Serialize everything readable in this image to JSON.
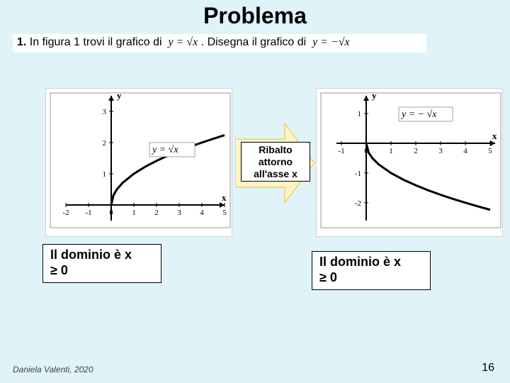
{
  "title": "Problema",
  "problem": {
    "prefix": "1.",
    "text_a": "In figura 1 trovi il grafico di",
    "eq_a": "y = √x",
    "text_b": ".  Disegna il grafico di",
    "eq_b": "y = −√x"
  },
  "arrow": {
    "label": "Ribalto\nattorno\nall'asse x",
    "fill": "#fff3c4",
    "stroke": "#e7c23c"
  },
  "chart_left": {
    "type": "line",
    "title": null,
    "equation_label": "y = √x",
    "x": {
      "min": -2,
      "max": 5,
      "ticks": [
        -2,
        -1,
        0,
        1,
        2,
        3,
        4,
        5
      ],
      "label": "x"
    },
    "y": {
      "min": -0.5,
      "max": 3.5,
      "ticks": [
        1,
        2,
        3
      ],
      "label": "y"
    },
    "curve": {
      "fn": "sqrt",
      "xmin": 0,
      "xmax": 5,
      "points": [
        {
          "x": 0,
          "y": 0
        },
        {
          "x": 0.1,
          "y": 0.316
        },
        {
          "x": 0.25,
          "y": 0.5
        },
        {
          "x": 0.5,
          "y": 0.707
        },
        {
          "x": 1,
          "y": 1
        },
        {
          "x": 1.5,
          "y": 1.225
        },
        {
          "x": 2,
          "y": 1.414
        },
        {
          "x": 2.5,
          "y": 1.581
        },
        {
          "x": 3,
          "y": 1.732
        },
        {
          "x": 3.5,
          "y": 1.871
        },
        {
          "x": 4,
          "y": 2
        },
        {
          "x": 4.5,
          "y": 2.121
        },
        {
          "x": 5,
          "y": 2.236
        }
      ],
      "color": "#000000",
      "width": 3
    },
    "axis_color": "#000000",
    "background": "#ffffff",
    "tick_font_size": 11
  },
  "chart_right": {
    "type": "line",
    "title": null,
    "equation_label": "y = − √x",
    "x": {
      "min": -1.2,
      "max": 5.2,
      "ticks": [
        -1,
        0,
        1,
        2,
        3,
        4,
        5
      ],
      "label": "x"
    },
    "y": {
      "min": -2.6,
      "max": 1.6,
      "ticks": [
        1,
        -1,
        -2
      ],
      "label": "y"
    },
    "curve": {
      "fn": "-sqrt",
      "xmin": 0,
      "xmax": 5,
      "points": [
        {
          "x": 0,
          "y": 0
        },
        {
          "x": 0.1,
          "y": -0.316
        },
        {
          "x": 0.25,
          "y": -0.5
        },
        {
          "x": 0.5,
          "y": -0.707
        },
        {
          "x": 1,
          "y": -1
        },
        {
          "x": 1.5,
          "y": -1.225
        },
        {
          "x": 2,
          "y": -1.414
        },
        {
          "x": 2.5,
          "y": -1.581
        },
        {
          "x": 3,
          "y": -1.732
        },
        {
          "x": 3.5,
          "y": -1.871
        },
        {
          "x": 4,
          "y": -2
        },
        {
          "x": 4.5,
          "y": -2.121
        },
        {
          "x": 5,
          "y": -2.236
        }
      ],
      "color": "#000000",
      "width": 3
    },
    "axis_color": "#000000",
    "background": "#ffffff",
    "tick_font_size": 11
  },
  "caption": {
    "line1": "Il dominio è x",
    "line2": "≥ 0"
  },
  "footer": "Daniela Valenti, 2020",
  "page_number": "16"
}
